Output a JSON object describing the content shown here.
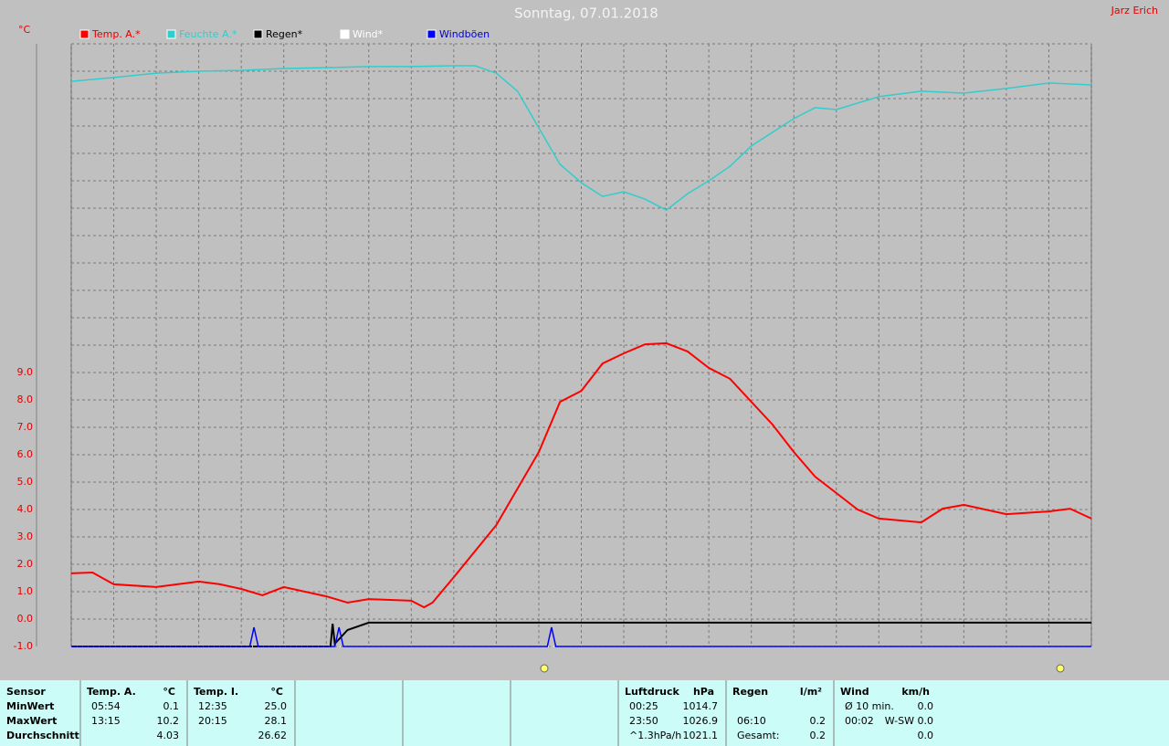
{
  "header": {
    "owner": "Jarz Erich"
  },
  "chart_data": {
    "type": "line",
    "title": "Sonntag, 07.01.2018",
    "y_unit": "°C",
    "xlim": [
      0,
      24
    ],
    "xticks": [
      0,
      1,
      2,
      3,
      4,
      5,
      6,
      7,
      8,
      9,
      10,
      11,
      12,
      13,
      14,
      15,
      16,
      17,
      18,
      19,
      20,
      21,
      22,
      23,
      24
    ],
    "ylim": [
      -1,
      21
    ],
    "yticks": [
      {
        "value": -1,
        "label": "-1.0"
      },
      {
        "value": 0,
        "label": "0.0"
      },
      {
        "value": 1,
        "label": "1.0"
      },
      {
        "value": 2,
        "label": "2.0"
      },
      {
        "value": 3,
        "label": "3.0"
      },
      {
        "value": 4,
        "label": "4.0"
      },
      {
        "value": 5,
        "label": "5.0"
      },
      {
        "value": 6,
        "label": "6.0"
      },
      {
        "value": 7,
        "label": "7.0"
      },
      {
        "value": 8,
        "label": "8.0"
      },
      {
        "value": 9,
        "label": "9.0"
      },
      {
        "value": 10,
        "label": null
      },
      {
        "value": 11,
        "label": null
      },
      {
        "value": 12,
        "label": null
      },
      {
        "value": 13,
        "label": null
      },
      {
        "value": 14,
        "label": null
      },
      {
        "value": 15,
        "label": null
      },
      {
        "value": 16,
        "label": null
      },
      {
        "value": 17,
        "label": null
      },
      {
        "value": 18,
        "label": null
      },
      {
        "value": 19,
        "label": null
      },
      {
        "value": 20,
        "label": null
      },
      {
        "value": 21,
        "label": null
      }
    ],
    "grid": true,
    "series": [
      {
        "name": "Temp. A.*",
        "color": "#ff0000",
        "x": [
          0,
          0.5,
          1,
          2,
          3,
          3.5,
          4,
          4.5,
          5,
          6,
          6.5,
          7,
          8,
          8.3,
          8.5,
          9,
          10,
          11,
          11.5,
          12,
          12.5,
          13,
          13.5,
          14,
          14.5,
          15,
          15.5,
          16,
          16.5,
          17,
          17.5,
          18,
          18.5,
          19,
          20,
          20.5,
          21,
          22,
          23,
          23.5,
          24
        ],
        "values": [
          1.67,
          1.7,
          1.27,
          1.17,
          1.37,
          1.27,
          1.1,
          0.87,
          1.17,
          0.83,
          0.6,
          0.73,
          0.67,
          0.43,
          0.6,
          1.53,
          3.43,
          6.1,
          7.93,
          8.33,
          9.33,
          9.7,
          10.03,
          10.07,
          9.77,
          9.17,
          8.77,
          7.93,
          7.1,
          6.1,
          5.2,
          4.6,
          4.0,
          3.67,
          3.53,
          4.03,
          4.17,
          3.83,
          3.93,
          4.03,
          3.67
        ]
      },
      {
        "name": "Feuchte A.*",
        "color": "#33cccc",
        "x": [
          0,
          1,
          2,
          3,
          4,
          5,
          6,
          7,
          8,
          9,
          9.5,
          10,
          10.5,
          11,
          11.5,
          12,
          12.5,
          13,
          13.5,
          14,
          14.5,
          15,
          15.5,
          16,
          16.5,
          17,
          17.5,
          18,
          19,
          20,
          21,
          22,
          23,
          24
        ],
        "values": [
          19.63,
          19.77,
          19.93,
          20.0,
          20.03,
          20.1,
          20.13,
          20.17,
          20.17,
          20.2,
          20.2,
          19.93,
          19.27,
          17.93,
          16.6,
          15.93,
          15.43,
          15.6,
          15.33,
          14.93,
          15.53,
          16.0,
          16.53,
          17.27,
          17.77,
          18.27,
          18.67,
          18.6,
          19.07,
          19.27,
          19.2,
          19.37,
          19.57,
          19.5
        ]
      },
      {
        "name": "Regen*",
        "color": "#000000",
        "x": [
          0,
          6.1,
          6.15,
          6.2,
          6.5,
          7,
          24
        ],
        "values": [
          -1,
          -1,
          -0.17,
          -0.9,
          -0.4,
          -0.13,
          -0.13
        ]
      },
      {
        "name": "Wind*",
        "color": "#ffffff",
        "x": [
          0,
          24
        ],
        "values": [
          -1,
          -1
        ]
      },
      {
        "name": "Windböen",
        "color": "#0000ff",
        "x": [
          0,
          4.2,
          4.3,
          4.4,
          6.2,
          6.3,
          6.4,
          11.2,
          11.3,
          11.4,
          24
        ],
        "values": [
          -1,
          -1,
          -0.3,
          -1,
          -1,
          -0.3,
          -1,
          -1,
          -0.3,
          -1,
          -1
        ]
      }
    ]
  },
  "table": {
    "groups": [
      {
        "header": [
          "Sensor",
          null
        ],
        "rows": [
          [
            "MinWert",
            null
          ],
          [
            "MaxWert",
            null
          ],
          [
            "Durchschnitt",
            null
          ]
        ]
      },
      {
        "header": [
          "Temp. A.",
          "°C"
        ],
        "rows": [
          [
            "05:54",
            "0.1"
          ],
          [
            "13:15",
            "10.2"
          ],
          [
            null,
            "4.03"
          ]
        ]
      },
      {
        "header": [
          "Temp. I.",
          "°C"
        ],
        "rows": [
          [
            "12:35",
            "25.0"
          ],
          [
            "20:15",
            "28.1"
          ],
          [
            null,
            "26.62"
          ]
        ]
      },
      {
        "header": [
          null,
          null
        ],
        "rows": []
      },
      {
        "header": [
          null,
          null
        ],
        "rows": []
      },
      {
        "header": [
          null,
          null
        ],
        "rows": []
      },
      {
        "header": [
          "Luftdruck",
          "hPa"
        ],
        "rows": [
          [
            "00:25",
            "1014.7"
          ],
          [
            "23:50",
            "1026.9"
          ],
          [
            "^1.3hPa/h",
            "1021.1"
          ]
        ]
      },
      {
        "header": [
          "Regen",
          "l/m²"
        ],
        "rows": [
          [
            null,
            null
          ],
          [
            "06:10",
            "0.2"
          ],
          [
            "Gesamt:",
            "0.2"
          ]
        ]
      },
      {
        "header": [
          "Wind",
          "km/h"
        ],
        "rows": [
          [
            "Ø 10 min.",
            "0.0"
          ],
          [
            "00:02",
            "W-SW 0.0"
          ],
          [
            null,
            "0.0"
          ]
        ]
      }
    ]
  }
}
